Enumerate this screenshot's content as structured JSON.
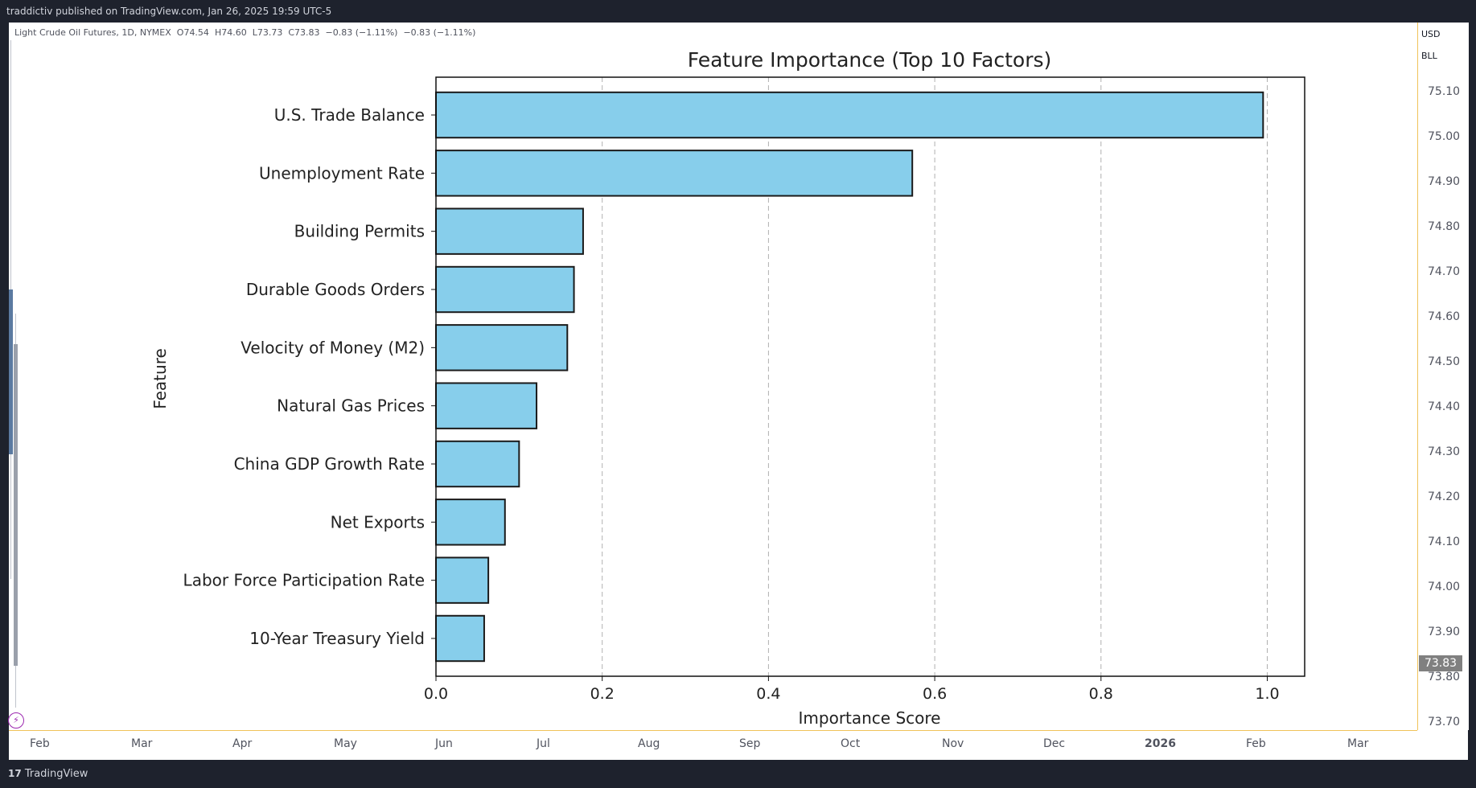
{
  "header": {
    "published": "traddictiv published on TradingView.com, Jan 26, 2025 19:59 UTC-5"
  },
  "symbol": {
    "name": "Light Crude Oil Futures, 1D, NYMEX",
    "open": "O74.54",
    "high": "H74.60",
    "low": "L73.73",
    "close": "C73.83",
    "change": "−0.83 (−1.11%)",
    "change2": "−0.83 (−1.11%)"
  },
  "price_axis": {
    "currency": "USD",
    "unit": "BLL",
    "labels": [
      "75.10",
      "75.00",
      "74.90",
      "74.80",
      "74.70",
      "74.60",
      "74.50",
      "74.40",
      "74.30",
      "74.20",
      "74.10",
      "74.00",
      "73.90",
      "73.80",
      "73.70"
    ],
    "last_price": "73.83"
  },
  "time_axis": {
    "labels": [
      "Feb",
      "Mar",
      "Apr",
      "May",
      "Jun",
      "Jul",
      "Aug",
      "Sep",
      "Oct",
      "Nov",
      "Dec",
      "2026",
      "Feb",
      "Mar"
    ],
    "bold_label": "2026"
  },
  "footer": {
    "brand": "TradingView",
    "logo": "17"
  },
  "colors": {
    "bar_fill": "#87ceeb",
    "bar_edge": "#1a1a1a",
    "grid": "#b0b0b0",
    "accent_axis": "#f0c35a"
  },
  "chart_data": {
    "type": "bar",
    "orientation": "horizontal",
    "title": "Feature Importance (Top 10 Factors)",
    "xlabel": "Importance Score",
    "ylabel": "Feature",
    "categories": [
      "U.S. Trade Balance",
      "Unemployment Rate",
      "Building Permits",
      "Durable Goods Orders",
      "Velocity of Money (M2)",
      "Natural Gas Prices",
      "China GDP Growth Rate",
      "Net Exports",
      "Labor Force Participation Rate",
      "10-Year Treasury Yield"
    ],
    "values": [
      0.995,
      0.573,
      0.177,
      0.166,
      0.158,
      0.121,
      0.1,
      0.083,
      0.063,
      0.058
    ],
    "xlim": [
      0,
      1.045
    ],
    "xticks": [
      0.0,
      0.2,
      0.4,
      0.6,
      0.8,
      1.0
    ],
    "xtick_labels": [
      "0.0",
      "0.2",
      "0.4",
      "0.6",
      "0.8",
      "1.0"
    ],
    "grid": "x-dashed"
  }
}
